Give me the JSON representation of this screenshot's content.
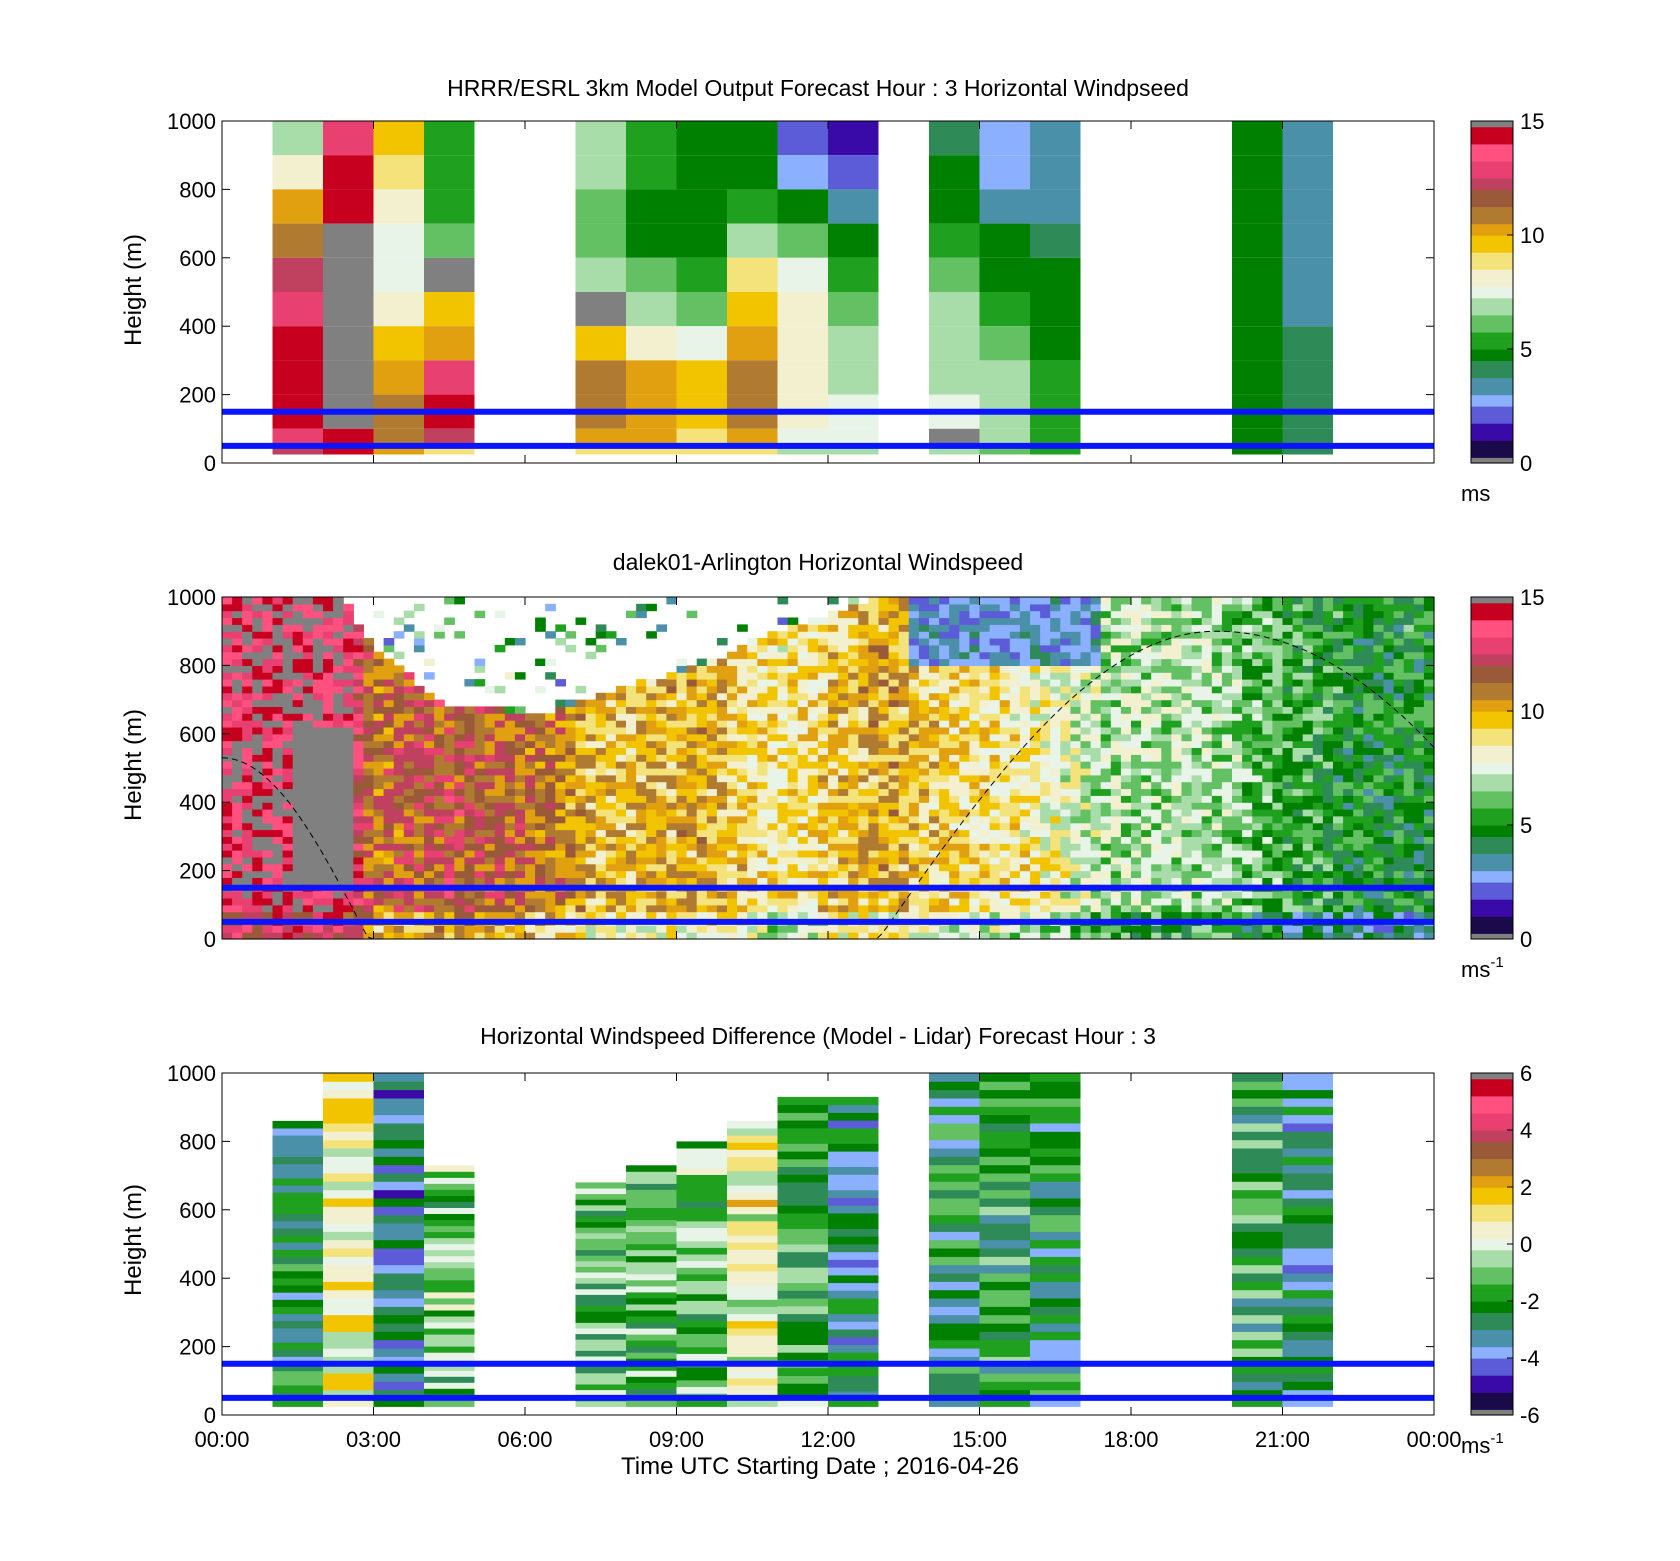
{
  "figure": {
    "xlabel": "Time UTC  Starting Date ; 2016-04-26",
    "x_tick_labels": [
      "00:00",
      "03:00",
      "06:00",
      "09:00",
      "12:00",
      "15:00",
      "18:00",
      "21:00",
      "00:00"
    ]
  },
  "chart_data": [
    {
      "type": "heatmap",
      "title": "HRRR/ESRL 3km Model Output   Forecast Hour : 3 Horizontal Windpseed",
      "ylabel": "Height (m)",
      "y_tick_labels": [
        "0",
        "200",
        "400",
        "600",
        "800",
        "1000"
      ],
      "ylim": [
        0,
        1000
      ],
      "xlim_hours": [
        0,
        24
      ],
      "colorbar": {
        "ticks": [
          "0",
          "5",
          "10",
          "15"
        ],
        "unit": "ms",
        "unit_sup": "",
        "range": [
          0,
          15
        ],
        "palette": [
          "#808080",
          "#1a0a4a",
          "#3a0aa8",
          "#5c5cd8",
          "#8ab0ff",
          "#4a90a8",
          "#2e8b57",
          "#008000",
          "#1fa01f",
          "#63c063",
          "#a8dca8",
          "#e8f4e8",
          "#f3f0d0",
          "#f4e27a",
          "#f2c400",
          "#e0a010",
          "#b07a30",
          "#9a5a3a",
          "#c04060",
          "#e84070",
          "#ff5080",
          "#c80020",
          "#808080"
        ]
      },
      "reference_lines_m": [
        50,
        150
      ],
      "columns": [
        {
          "hour": 1.5,
          "top_m": 1000,
          "levels": [
            [
              1000,
              7
            ],
            [
              900,
              8
            ],
            [
              800,
              10
            ],
            [
              700,
              11
            ],
            [
              600,
              12
            ],
            [
              500,
              13
            ],
            [
              400,
              14
            ],
            [
              300,
              14
            ],
            [
              200,
              14
            ],
            [
              100,
              13
            ],
            [
              50,
              12
            ]
          ]
        },
        {
          "hour": 2.5,
          "top_m": 1000,
          "levels": [
            [
              1000,
              13
            ],
            [
              900,
              14
            ],
            [
              800,
              14
            ],
            [
              700,
              15
            ],
            [
              600,
              16
            ],
            [
              500,
              16
            ],
            [
              400,
              16
            ],
            [
              300,
              16
            ],
            [
              200,
              15
            ],
            [
              100,
              14
            ],
            [
              50,
              14
            ]
          ]
        },
        {
          "hour": 3.5,
          "top_m": 1000,
          "levels": [
            [
              1000,
              9.5
            ],
            [
              900,
              9
            ],
            [
              800,
              8
            ],
            [
              700,
              7.5
            ],
            [
              600,
              7.5
            ],
            [
              500,
              8.5
            ],
            [
              400,
              9.5
            ],
            [
              300,
              10.5
            ],
            [
              200,
              11
            ],
            [
              100,
              11
            ],
            [
              50,
              10
            ]
          ]
        },
        {
          "hour": 4.5,
          "top_m": 1000,
          "levels": [
            [
              1000,
              5.5
            ],
            [
              900,
              5.5
            ],
            [
              800,
              5.5
            ],
            [
              700,
              6
            ],
            [
              600,
              16
            ],
            [
              500,
              9.5
            ],
            [
              400,
              10.5
            ],
            [
              300,
              13
            ],
            [
              200,
              14
            ],
            [
              100,
              12
            ],
            [
              50,
              9
            ]
          ]
        },
        {
          "hour": 7.5,
          "top_m": 1000,
          "levels": [
            [
              1000,
              6.5
            ],
            [
              900,
              6.5
            ],
            [
              800,
              6
            ],
            [
              700,
              6
            ],
            [
              600,
              7
            ],
            [
              500,
              16
            ],
            [
              400,
              9.5
            ],
            [
              300,
              11
            ],
            [
              200,
              11
            ],
            [
              100,
              10
            ],
            [
              50,
              9
            ]
          ]
        },
        {
          "hour": 8.5,
          "top_m": 1000,
          "levels": [
            [
              1000,
              5.5
            ],
            [
              900,
              5.5
            ],
            [
              800,
              5
            ],
            [
              700,
              5
            ],
            [
              600,
              6
            ],
            [
              500,
              6.5
            ],
            [
              400,
              8
            ],
            [
              300,
              10.5
            ],
            [
              200,
              10.5
            ],
            [
              100,
              10
            ],
            [
              50,
              9
            ]
          ]
        },
        {
          "hour": 9.5,
          "top_m": 1000,
          "levels": [
            [
              1000,
              4.5
            ],
            [
              900,
              4.5
            ],
            [
              800,
              4.8
            ],
            [
              700,
              4.8
            ],
            [
              600,
              5.5
            ],
            [
              500,
              6
            ],
            [
              400,
              7.5
            ],
            [
              300,
              9.5
            ],
            [
              200,
              9.5
            ],
            [
              100,
              9
            ],
            [
              50,
              9
            ]
          ]
        },
        {
          "hour": 10.5,
          "top_m": 1000,
          "levels": [
            [
              1000,
              4.5
            ],
            [
              900,
              4.8
            ],
            [
              800,
              5.5
            ],
            [
              700,
              6.5
            ],
            [
              600,
              9
            ],
            [
              500,
              9.5
            ],
            [
              400,
              10.5
            ],
            [
              300,
              11
            ],
            [
              200,
              11
            ],
            [
              100,
              10
            ],
            [
              50,
              9
            ]
          ]
        },
        {
          "hour": 11.5,
          "top_m": 1000,
          "levels": [
            [
              1000,
              2
            ],
            [
              900,
              2.5
            ],
            [
              800,
              5
            ],
            [
              700,
              6
            ],
            [
              600,
              7.5
            ],
            [
              500,
              8
            ],
            [
              400,
              8.5
            ],
            [
              300,
              8.5
            ],
            [
              200,
              8.2
            ],
            [
              100,
              7.5
            ],
            [
              50,
              7
            ]
          ]
        },
        {
          "hour": 12.5,
          "top_m": 1000,
          "levels": [
            [
              1000,
              1.5
            ],
            [
              900,
              2
            ],
            [
              800,
              3.5
            ],
            [
              700,
              5
            ],
            [
              600,
              5.5
            ],
            [
              500,
              6
            ],
            [
              400,
              6.5
            ],
            [
              300,
              7
            ],
            [
              200,
              7.5
            ],
            [
              100,
              7.5
            ],
            [
              50,
              7
            ]
          ]
        },
        {
          "hour": 14.5,
          "top_m": 1000,
          "levels": [
            [
              1000,
              4
            ],
            [
              900,
              4.5
            ],
            [
              800,
              5
            ],
            [
              700,
              5.5
            ],
            [
              600,
              6
            ],
            [
              500,
              6.5
            ],
            [
              400,
              6.8
            ],
            [
              300,
              7
            ],
            [
              200,
              7.5
            ],
            [
              100,
              16
            ],
            [
              50,
              7
            ]
          ]
        },
        {
          "hour": 15.5,
          "top_m": 1000,
          "levels": [
            [
              1000,
              2.5
            ],
            [
              900,
              2.8
            ],
            [
              800,
              3.5
            ],
            [
              700,
              4.8
            ],
            [
              600,
              5
            ],
            [
              500,
              5.5
            ],
            [
              400,
              6
            ],
            [
              300,
              6.5
            ],
            [
              200,
              6.8
            ],
            [
              100,
              6.5
            ],
            [
              50,
              6
            ]
          ]
        },
        {
          "hour": 16.5,
          "top_m": 1000,
          "levels": [
            [
              1000,
              3.2
            ],
            [
              900,
              3.3
            ],
            [
              800,
              3.5
            ],
            [
              700,
              4
            ],
            [
              600,
              4.6
            ],
            [
              500,
              4.8
            ],
            [
              400,
              5
            ],
            [
              300,
              5.3
            ],
            [
              200,
              5.5
            ],
            [
              100,
              5.5
            ],
            [
              50,
              5.2
            ]
          ]
        },
        {
          "hour": 20.5,
          "top_m": 1000,
          "levels": [
            [
              1000,
              4.6
            ],
            [
              900,
              4.6
            ],
            [
              800,
              4.7
            ],
            [
              700,
              4.7
            ],
            [
              600,
              4.7
            ],
            [
              500,
              4.8
            ],
            [
              400,
              4.8
            ],
            [
              300,
              4.8
            ],
            [
              200,
              4.8
            ],
            [
              100,
              4.8
            ],
            [
              50,
              4.8
            ]
          ]
        },
        {
          "hour": 21.5,
          "top_m": 1000,
          "levels": [
            [
              1000,
              3.3
            ],
            [
              900,
              3.2
            ],
            [
              800,
              3.2
            ],
            [
              700,
              3.4
            ],
            [
              600,
              3.5
            ],
            [
              500,
              3.7
            ],
            [
              400,
              3.9
            ],
            [
              300,
              4.1
            ],
            [
              200,
              4.2
            ],
            [
              100,
              4.2
            ],
            [
              50,
              4.2
            ]
          ]
        }
      ]
    },
    {
      "type": "heatmap",
      "title": "dalek01-Arlington  Horizontal Windspeed",
      "ylabel": "Height (m)",
      "y_tick_labels": [
        "0",
        "200",
        "400",
        "600",
        "800",
        "1000"
      ],
      "ylim": [
        0,
        1000
      ],
      "xlim_hours": [
        0,
        24
      ],
      "colorbar": {
        "ticks": [
          "0",
          "5",
          "10",
          "15"
        ],
        "unit": "ms",
        "unit_sup": "-1",
        "range": [
          0,
          15
        ]
      },
      "reference_lines_m": [
        50,
        150
      ],
      "regime_profiles": [
        {
          "hour": 0.0,
          "speed": 14,
          "top_m": 1000
        },
        {
          "hour": 1.2,
          "speed": 14.5,
          "top_m": 1000
        },
        {
          "hour": 2.4,
          "speed": 14.5,
          "top_m": 1000
        },
        {
          "hour": 3.0,
          "speed": 11,
          "top_m": 850
        },
        {
          "hour": 4.5,
          "speed": 12,
          "top_m": 680
        },
        {
          "hour": 6.5,
          "speed": 11,
          "top_m": 660
        },
        {
          "hour": 7.5,
          "speed": 9.5,
          "top_m": 720
        },
        {
          "hour": 9.5,
          "speed": 10,
          "top_m": 800
        },
        {
          "hour": 11,
          "speed": 8.5,
          "top_m": 900
        },
        {
          "hour": 13,
          "speed": 10,
          "top_m": 1000
        },
        {
          "hour": 14.5,
          "speed": 9,
          "top_m": 1000
        },
        {
          "hour": 16,
          "speed": 8.5,
          "top_m": 1000
        },
        {
          "hour": 17.5,
          "speed": 7,
          "top_m": 1000
        },
        {
          "hour": 19.5,
          "speed": 7,
          "top_m": 1000
        },
        {
          "hour": 20.5,
          "speed": 6,
          "top_m": 1000
        },
        {
          "hour": 22.5,
          "speed": 5,
          "top_m": 1000
        },
        {
          "hour": 24,
          "speed": 5,
          "top_m": 1000
        }
      ],
      "dashed_curve": {
        "description_points": [
          [
            0,
            530
          ],
          [
            2.9,
            0
          ],
          [
            13,
            0
          ],
          [
            19.7,
            900
          ],
          [
            24,
            560
          ]
        ]
      }
    },
    {
      "type": "heatmap",
      "title": "Horizontal Windspeed Difference (Model - Lidar) Forecast Hour : 3",
      "ylabel": "Height (m)",
      "y_tick_labels": [
        "0",
        "200",
        "400",
        "600",
        "800",
        "1000"
      ],
      "ylim": [
        0,
        1000
      ],
      "xlim_hours": [
        0,
        24
      ],
      "colorbar": {
        "ticks": [
          "-6",
          "-4",
          "-2",
          "0",
          "2",
          "4",
          "6"
        ],
        "unit": "ms",
        "unit_sup": "-1",
        "range": [
          -6,
          6
        ],
        "palette": [
          "#808080",
          "#1a0a4a",
          "#3a0aa8",
          "#5c5cd8",
          "#8ab0ff",
          "#4a90a8",
          "#2e8b57",
          "#008000",
          "#1fa01f",
          "#63c063",
          "#a8dca8",
          "#e8f4e8",
          "#f3f0d0",
          "#f4e27a",
          "#f2c400",
          "#e0a010",
          "#b07a30",
          "#9a5a3a",
          "#c04060",
          "#e84070",
          "#ff5080",
          "#c80020",
          "#808080"
        ]
      },
      "reference_lines_m": [
        50,
        150
      ],
      "columns": [
        {
          "hour": 1.5,
          "top_m": 860,
          "mean_diff": -2.5
        },
        {
          "hour": 2.5,
          "top_m": 1000,
          "mean_diff": 0.5
        },
        {
          "hour": 3.5,
          "top_m": 1000,
          "mean_diff": -3.5
        },
        {
          "hour": 4.5,
          "top_m": 730,
          "mean_diff": -1.0
        },
        {
          "hour": 7.5,
          "top_m": 680,
          "mean_diff": -1.5
        },
        {
          "hour": 8.5,
          "top_m": 730,
          "mean_diff": -1.5
        },
        {
          "hour": 9.5,
          "top_m": 800,
          "mean_diff": -1.0
        },
        {
          "hour": 10.5,
          "top_m": 860,
          "mean_diff": 0.5
        },
        {
          "hour": 11.5,
          "top_m": 930,
          "mean_diff": -1.5
        },
        {
          "hour": 12.5,
          "top_m": 930,
          "mean_diff": -3.0
        },
        {
          "hour": 14.5,
          "top_m": 1000,
          "mean_diff": -2.5
        },
        {
          "hour": 15.5,
          "top_m": 1000,
          "mean_diff": -2.0
        },
        {
          "hour": 16.5,
          "top_m": 1000,
          "mean_diff": -2.5
        },
        {
          "hour": 20.5,
          "top_m": 1000,
          "mean_diff": -2.0
        },
        {
          "hour": 21.5,
          "top_m": 1000,
          "mean_diff": -2.8
        }
      ]
    }
  ]
}
